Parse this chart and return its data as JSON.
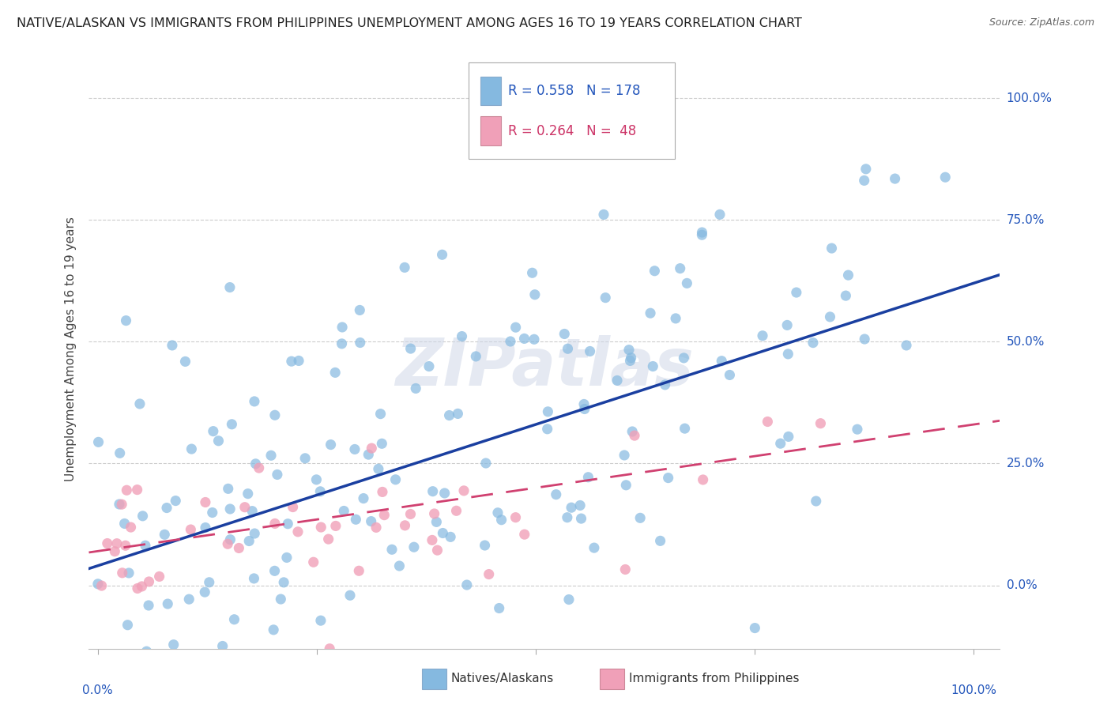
{
  "title": "NATIVE/ALASKAN VS IMMIGRANTS FROM PHILIPPINES UNEMPLOYMENT AMONG AGES 16 TO 19 YEARS CORRELATION CHART",
  "source": "Source: ZipAtlas.com",
  "ylabel": "Unemployment Among Ages 16 to 19 years",
  "ytick_labels": [
    "0.0%",
    "25.0%",
    "50.0%",
    "75.0%",
    "100.0%"
  ],
  "ytick_values": [
    0.0,
    0.25,
    0.5,
    0.75,
    1.0
  ],
  "xtick_values": [
    0.0,
    0.25,
    0.5,
    0.75,
    1.0
  ],
  "legend_label1": "Natives/Alaskans",
  "legend_label2": "Immigrants from Philippines",
  "R1": 0.558,
  "N1": 178,
  "R2": 0.264,
  "N2": 48,
  "blue_color": "#85b9e0",
  "pink_color": "#f0a0b8",
  "trendline_blue": "#1a3fa0",
  "trendline_pink": "#d04070",
  "background_color": "#ffffff",
  "watermark": "ZIPatlas",
  "blue_scatter_seed": 12,
  "pink_scatter_seed": 99,
  "blue_intercept": 0.04,
  "blue_slope": 0.58,
  "pink_intercept": 0.07,
  "pink_slope": 0.26,
  "ylim_min": -0.13,
  "ylim_max": 1.1,
  "xlim_min": -0.01,
  "xlim_max": 1.03
}
